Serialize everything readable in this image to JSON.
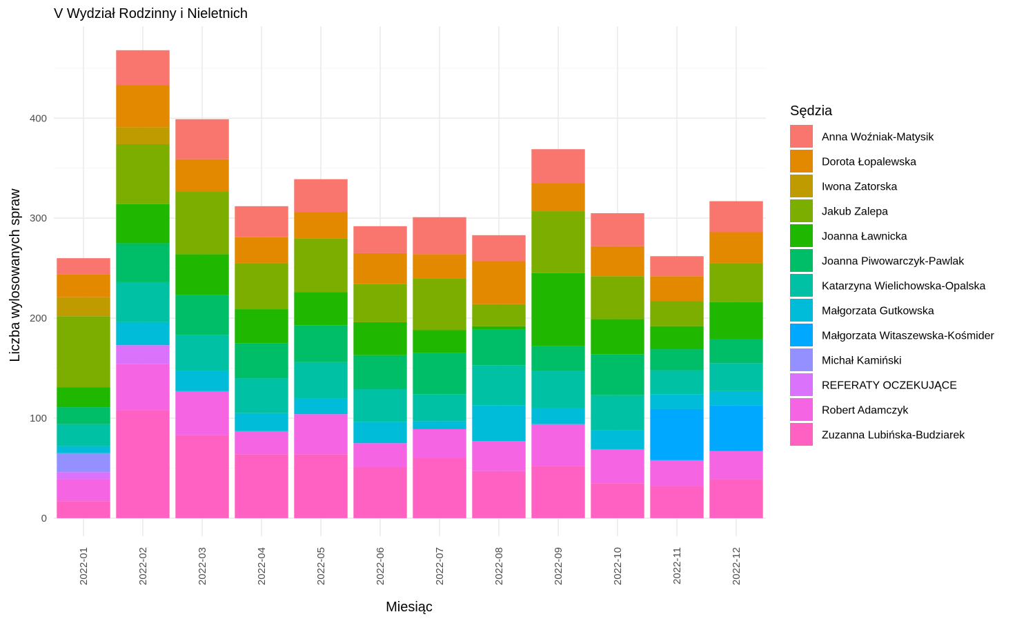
{
  "chart_data": {
    "type": "bar",
    "stacked": true,
    "title": "V Wydział Rodzinny i Nieletnich",
    "xlabel": "Miesiąc",
    "ylabel": "Liczba wylosowanych spraw",
    "ylim": [
      -18,
      492
    ],
    "yticks": [
      0,
      100,
      200,
      300,
      400
    ],
    "grid": true,
    "legend_title": "Sędzia",
    "legend_position": "right",
    "categories": [
      "2022-01",
      "2022-02",
      "2022-03",
      "2022-04",
      "2022-05",
      "2022-06",
      "2022-07",
      "2022-08",
      "2022-09",
      "2022-10",
      "2022-11",
      "2022-12"
    ],
    "series": [
      {
        "name": "Zuzanna Lubińska-Budziarek",
        "color": "#FF61C3",
        "values": [
          17,
          108,
          83,
          64,
          64,
          51,
          60,
          47,
          52,
          35,
          32,
          39
        ]
      },
      {
        "name": "Robert Adamczyk",
        "color": "#F564E3",
        "values": [
          22,
          46,
          44,
          23,
          40,
          24,
          29,
          30,
          42,
          34,
          26,
          28
        ]
      },
      {
        "name": "REFERATY OCZEKUJĄCE",
        "color": "#DB72FB",
        "values": [
          7,
          19,
          0,
          0,
          0,
          0,
          0,
          0,
          0,
          0,
          0,
          0
        ]
      },
      {
        "name": "Michał Kamiński",
        "color": "#9590FF",
        "values": [
          19,
          0,
          0,
          0,
          0,
          0,
          0,
          0,
          0,
          0,
          0,
          0
        ]
      },
      {
        "name": "Małgorzata Witaszewska-Kośmider",
        "color": "#00A9FF",
        "values": [
          0,
          0,
          0,
          0,
          0,
          0,
          0,
          0,
          0,
          0,
          51,
          46
        ]
      },
      {
        "name": "Małgorzata Gutkowska",
        "color": "#00BCD8",
        "values": [
          7,
          23,
          20,
          18,
          16,
          21,
          8,
          36,
          16,
          19,
          15,
          14
        ]
      },
      {
        "name": "Katarzyna Wielichowska-Opalska",
        "color": "#00C1A3",
        "values": [
          22,
          40,
          36,
          35,
          36,
          33,
          27,
          40,
          37,
          35,
          24,
          28
        ]
      },
      {
        "name": "Joanna Piwowarczyk-Pawlak",
        "color": "#00BE67",
        "values": [
          17,
          39,
          40,
          35,
          37,
          34,
          41,
          36,
          25,
          41,
          21,
          24
        ]
      },
      {
        "name": "Joanna Ławnicka",
        "color": "#1FB700",
        "values": [
          20,
          39,
          41,
          34,
          33,
          33,
          23,
          3,
          73,
          35,
          23,
          37
        ]
      },
      {
        "name": "Jakub Zalepa",
        "color": "#7CAE00",
        "values": [
          71,
          60,
          63,
          46,
          54,
          38,
          52,
          22,
          62,
          43,
          25,
          39
        ]
      },
      {
        "name": "Iwona Zatorska",
        "color": "#C09B00",
        "values": [
          19,
          17,
          0,
          0,
          0,
          0,
          0,
          0,
          0,
          0,
          0,
          0
        ]
      },
      {
        "name": "Dorota Łopalewska",
        "color": "#E38900",
        "values": [
          23,
          42,
          32,
          26,
          26,
          31,
          24,
          43,
          28,
          30,
          25,
          31
        ]
      },
      {
        "name": "Anna Woźniak-Matysik",
        "color": "#F8766D",
        "values": [
          16,
          35,
          40,
          31,
          33,
          27,
          37,
          26,
          34,
          33,
          20,
          31
        ]
      }
    ],
    "legend_order": [
      "Anna Woźniak-Matysik",
      "Dorota Łopalewska",
      "Iwona Zatorska",
      "Jakub Zalepa",
      "Joanna Ławnicka",
      "Joanna Piwowarczyk-Pawlak",
      "Katarzyna Wielichowska-Opalska",
      "Małgorzata Gutkowska",
      "Małgorzata Witaszewska-Kośmider",
      "Michał Kamiński",
      "REFERATY OCZEKUJĄCE",
      "Robert Adamczyk",
      "Zuzanna Lubińska-Budziarek"
    ]
  }
}
